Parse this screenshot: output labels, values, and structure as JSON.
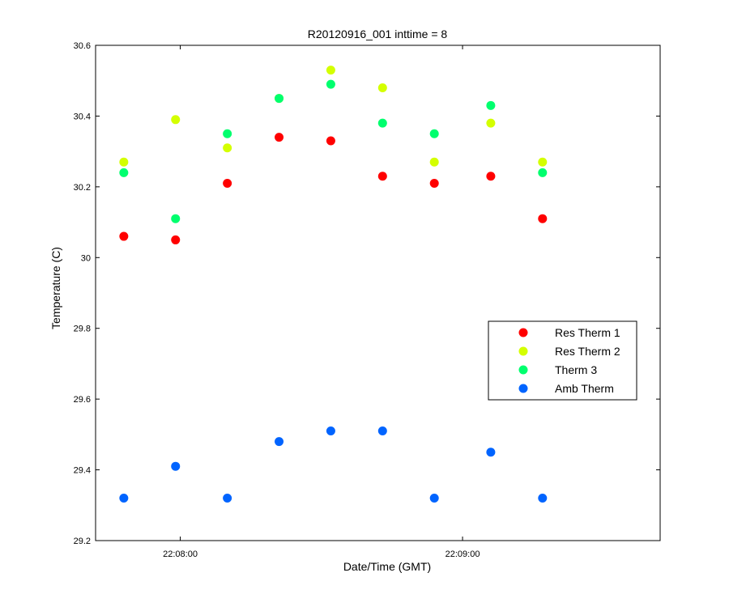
{
  "chart_data": {
    "type": "scatter",
    "title": "R20120916_001 inttime = 8",
    "xlabel": "Date/Time (GMT)",
    "ylabel": "Temperature (C)",
    "x_unit": "time of day (GMT)",
    "xlim": [
      "22:07:42",
      "22:09:42"
    ],
    "ylim": [
      29.2,
      30.6
    ],
    "xticks": [
      {
        "value": "22:08:00",
        "label": "22:08:00"
      },
      {
        "value": "22:09:00",
        "label": "22:09:00"
      }
    ],
    "yticks": [
      {
        "value": 29.2,
        "label": "29.2"
      },
      {
        "value": 29.4,
        "label": "29.4"
      },
      {
        "value": 29.6,
        "label": "29.6"
      },
      {
        "value": 29.8,
        "label": "29.8"
      },
      {
        "value": 30.0,
        "label": "30"
      },
      {
        "value": 30.2,
        "label": "30.2"
      },
      {
        "value": 30.4,
        "label": "30.4"
      },
      {
        "value": 30.6,
        "label": "30.6"
      }
    ],
    "grid": false,
    "legend_position": "right",
    "x": [
      "22:07:48",
      "22:07:59",
      "22:08:10",
      "22:08:21",
      "22:08:32",
      "22:08:43",
      "22:08:54",
      "22:09:06",
      "22:09:17"
    ],
    "series": [
      {
        "name": "Res Therm 1",
        "color": "#ff0000",
        "values": [
          30.06,
          30.05,
          30.21,
          30.34,
          30.33,
          30.23,
          30.21,
          30.23,
          30.11
        ]
      },
      {
        "name": "Res Therm 2",
        "color": "#d4ff00",
        "values": [
          30.27,
          30.39,
          30.31,
          30.45,
          30.53,
          30.48,
          30.27,
          30.38,
          30.27
        ]
      },
      {
        "name": "Therm 3",
        "color": "#00ff6e",
        "values": [
          30.24,
          30.11,
          30.35,
          30.45,
          30.49,
          30.38,
          30.35,
          30.43,
          30.24
        ]
      },
      {
        "name": "Amb Therm",
        "color": "#0064ff",
        "values": [
          29.32,
          29.41,
          29.32,
          29.48,
          29.51,
          29.51,
          29.32,
          29.45,
          29.32
        ]
      }
    ]
  }
}
